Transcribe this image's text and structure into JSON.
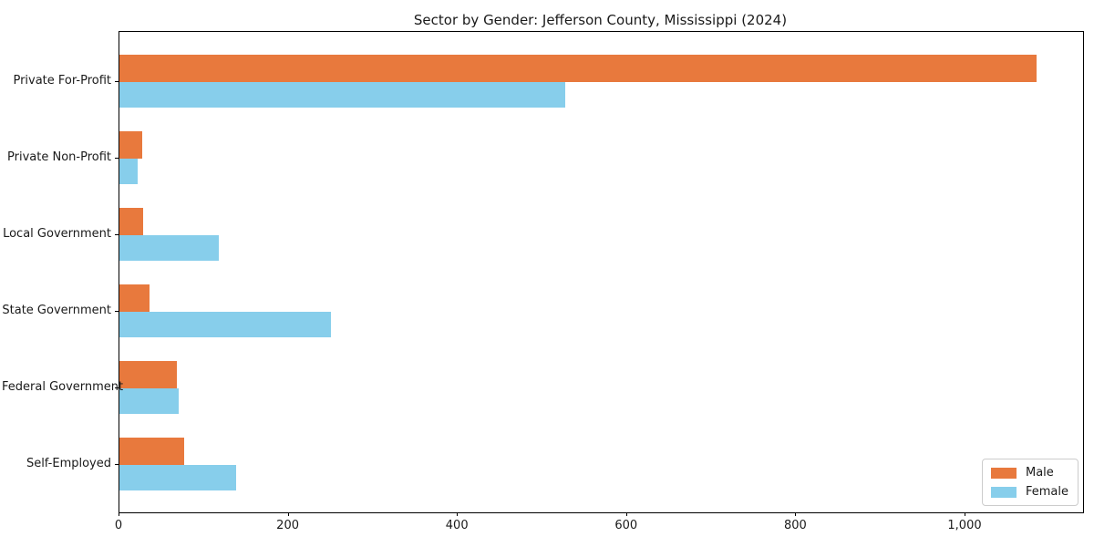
{
  "chart_data": {
    "type": "bar",
    "orientation": "horizontal",
    "title": "Sector by Gender: Jefferson County, Mississippi (2024)",
    "xlabel": "",
    "ylabel": "",
    "categories": [
      "Private For-Profit",
      "Private Non-Profit",
      "Local Government",
      "State Government",
      "Federal Government",
      "Self-Employed"
    ],
    "series": [
      {
        "name": "Male",
        "color": "#e8793d",
        "values": [
          1084,
          27,
          28,
          36,
          68,
          76
        ]
      },
      {
        "name": "Female",
        "color": "#87ceeb",
        "values": [
          527,
          22,
          117,
          250,
          70,
          138
        ]
      }
    ],
    "xlim": [
      0,
      1139
    ],
    "xticks": [
      0,
      200,
      400,
      600,
      800,
      1000
    ],
    "xtick_labels": [
      "0",
      "200",
      "400",
      "600",
      "800",
      "1,000"
    ],
    "grid": false,
    "legend": {
      "position": "lower right",
      "entries": [
        "Male",
        "Female"
      ]
    }
  }
}
